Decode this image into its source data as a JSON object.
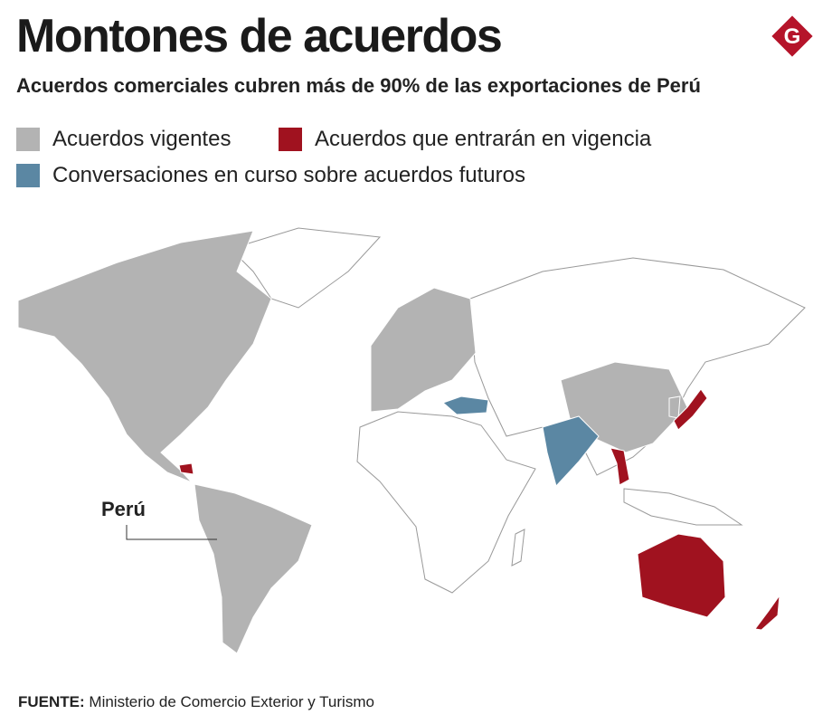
{
  "header": {
    "title": "Montones de acuerdos",
    "subtitle": "Acuerdos comerciales cubren más de 90% de las exportaciones de Perú",
    "logo": "G"
  },
  "legend": {
    "items": [
      {
        "label": "Acuerdos vigentes",
        "color": "#b3b3b3"
      },
      {
        "label": "Acuerdos que entrarán en vigencia",
        "color": "#a0121f"
      },
      {
        "label": "Conversaciones en curso sobre acuerdos futuros",
        "color": "#5b87a3"
      }
    ]
  },
  "map": {
    "label": "Perú"
  },
  "source": {
    "label": "FUENTE:",
    "text": "Ministerio de Comercio Exterior y Turismo"
  }
}
